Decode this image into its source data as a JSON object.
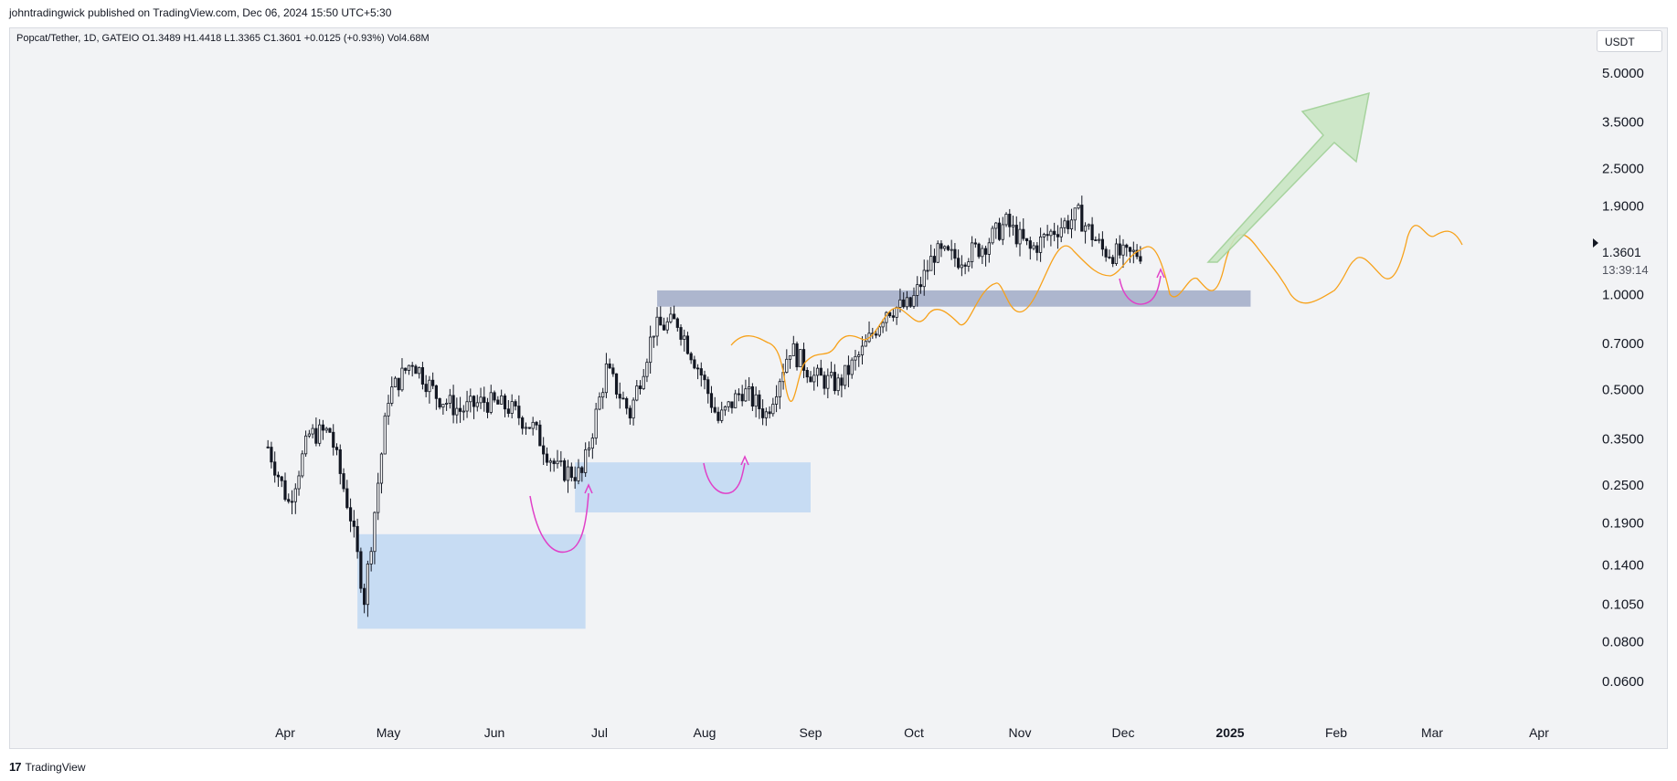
{
  "header": {
    "published": "johntradingwick published on TradingView.com, Dec 06, 2024 15:50 UTC+5:30"
  },
  "legend": {
    "text": "Popcat/Tether, 1D, GATEIO  O1.3489  H1.4418  L1.3365  C1.3601  +0.0125 (+0.93%)  Vol4.68M"
  },
  "currency": "USDT",
  "price_label": {
    "value": "1.3601",
    "countdown": "13:39:14"
  },
  "footer": {
    "brand": "TradingView",
    "logo_text": "17"
  },
  "colors": {
    "candle": "#131722",
    "demand_zone": "#c7dcf3",
    "resistance_zone": "#9ba6c4",
    "ma_line": "#f7a21b",
    "curve": "#e040c8",
    "arrow_fill": "#c9e6c4",
    "arrow_stroke": "#9fd095"
  },
  "chart_data": {
    "type": "candlestick",
    "title": "Popcat/Tether, 1D, GATEIO",
    "y_scale": "log",
    "ylim": [
      0.05,
      6.0
    ],
    "y_ticks": [
      "5.0000",
      "3.5000",
      "2.5000",
      "1.9000",
      "1.3601",
      "1.0000",
      "0.7000",
      "0.5000",
      "0.3500",
      "0.2500",
      "0.1900",
      "0.1400",
      "0.1050",
      "0.0800",
      "0.0600"
    ],
    "x_ticks": [
      "Apr",
      "May",
      "Jun",
      "Jul",
      "Aug",
      "Sep",
      "Oct",
      "Nov",
      "Dec",
      "2025",
      "Feb",
      "Mar",
      "Apr"
    ],
    "x_range": [
      "2024-03-10",
      "2025-04-10"
    ],
    "ohlc_daily_close": [
      [
        "2024-03-27",
        0.33
      ],
      [
        "2024-04-02",
        0.22
      ],
      [
        "2024-04-08",
        0.36
      ],
      [
        "2024-04-14",
        0.37
      ],
      [
        "2024-04-20",
        0.2
      ],
      [
        "2024-04-24",
        0.11
      ],
      [
        "2024-05-01",
        0.48
      ],
      [
        "2024-05-08",
        0.62
      ],
      [
        "2024-05-15",
        0.48
      ],
      [
        "2024-05-22",
        0.43
      ],
      [
        "2024-05-29",
        0.46
      ],
      [
        "2024-06-05",
        0.44
      ],
      [
        "2024-06-12",
        0.38
      ],
      [
        "2024-06-19",
        0.28
      ],
      [
        "2024-06-26",
        0.27
      ],
      [
        "2024-07-03",
        0.58
      ],
      [
        "2024-07-10",
        0.42
      ],
      [
        "2024-07-17",
        0.78
      ],
      [
        "2024-07-24",
        0.82
      ],
      [
        "2024-07-31",
        0.56
      ],
      [
        "2024-08-05",
        0.4
      ],
      [
        "2024-08-12",
        0.5
      ],
      [
        "2024-08-19",
        0.42
      ],
      [
        "2024-08-26",
        0.68
      ],
      [
        "2024-09-02",
        0.55
      ],
      [
        "2024-09-09",
        0.52
      ],
      [
        "2024-09-16",
        0.66
      ],
      [
        "2024-09-23",
        0.9
      ],
      [
        "2024-09-30",
        0.92
      ],
      [
        "2024-10-07",
        1.35
      ],
      [
        "2024-10-14",
        1.3
      ],
      [
        "2024-10-21",
        1.42
      ],
      [
        "2024-10-28",
        1.68
      ],
      [
        "2024-11-04",
        1.38
      ],
      [
        "2024-11-11",
        1.6
      ],
      [
        "2024-11-18",
        1.78
      ],
      [
        "2024-11-25",
        1.38
      ],
      [
        "2024-12-02",
        1.32
      ],
      [
        "2024-12-06",
        1.3601
      ]
    ],
    "zones": [
      {
        "from": "2024-04-22",
        "to": "2024-06-27",
        "low": 0.088,
        "high": 0.175
      },
      {
        "from": "2024-06-24",
        "to": "2024-09-01",
        "low": 0.205,
        "high": 0.295
      },
      {
        "from": "2024-07-18",
        "to": "2025-01-07",
        "low": 0.915,
        "high": 1.03
      }
    ]
  }
}
